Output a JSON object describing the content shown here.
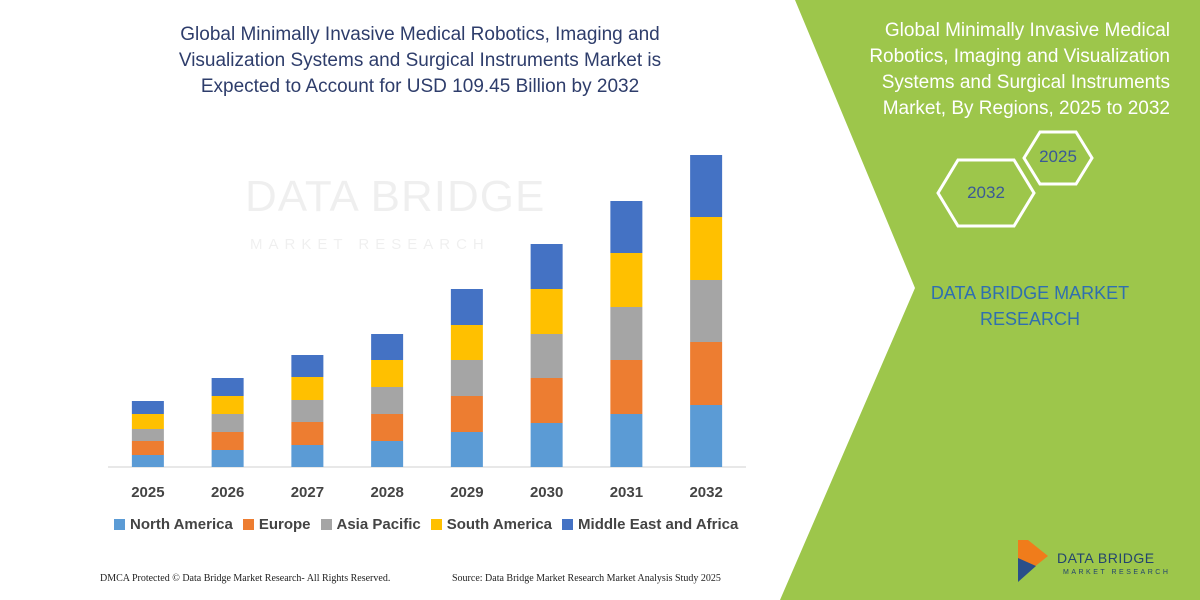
{
  "title": "Global Minimally Invasive Medical Robotics, Imaging and Visualization Systems and Surgical Instruments Market is Expected to Account for USD 109.45 Billion by 2032",
  "side_panel": {
    "title": "Global Minimally Invasive Medical Robotics, Imaging and Visualization Systems and Surgical Instruments Market, By Regions, 2025 to 2032",
    "hex_top": "2025",
    "hex_bottom": "2032",
    "brand": "DATA BRIDGE MARKET RESEARCH"
  },
  "watermark": {
    "main": "DATA BRIDGE",
    "sub": "MARKET RESEARCH"
  },
  "footer": {
    "left": "DMCA Protected © Data Bridge Market Research- All Rights Reserved.",
    "right": "Source: Data Bridge Market Research Market Analysis Study 2025"
  },
  "logo": {
    "main": "DATA BRIDGE",
    "sub": "MARKET RESEARCH"
  },
  "colors": {
    "panel_green": "#9dc64b",
    "north_america": "#5b9bd5",
    "europe": "#ed7d31",
    "asia_pacific": "#a5a5a5",
    "south_america": "#ffc000",
    "middle_east_africa": "#4472c4"
  },
  "chart_data": {
    "type": "bar",
    "stacked": true,
    "categories": [
      "2025",
      "2026",
      "2027",
      "2028",
      "2029",
      "2030",
      "2031",
      "2032"
    ],
    "series": [
      {
        "name": "North America",
        "color": "#5b9bd5",
        "values": [
          12,
          17,
          22,
          26,
          35,
          44,
          53,
          62
        ]
      },
      {
        "name": "Europe",
        "color": "#ed7d31",
        "values": [
          14,
          18,
          23,
          27,
          36,
          45,
          54,
          63
        ]
      },
      {
        "name": "Asia Pacific",
        "color": "#a5a5a5",
        "values": [
          12,
          18,
          22,
          27,
          36,
          44,
          53,
          62
        ]
      },
      {
        "name": "South America",
        "color": "#ffc000",
        "values": [
          15,
          18,
          23,
          27,
          35,
          45,
          54,
          63
        ]
      },
      {
        "name": "Middle East and Africa",
        "color": "#4472c4",
        "values": [
          13,
          18,
          22,
          26,
          36,
          45,
          52,
          62
        ]
      }
    ],
    "ylim": [
      0,
      340
    ],
    "grid": false,
    "legend": "bottom",
    "xlabel": "",
    "ylabel": ""
  }
}
